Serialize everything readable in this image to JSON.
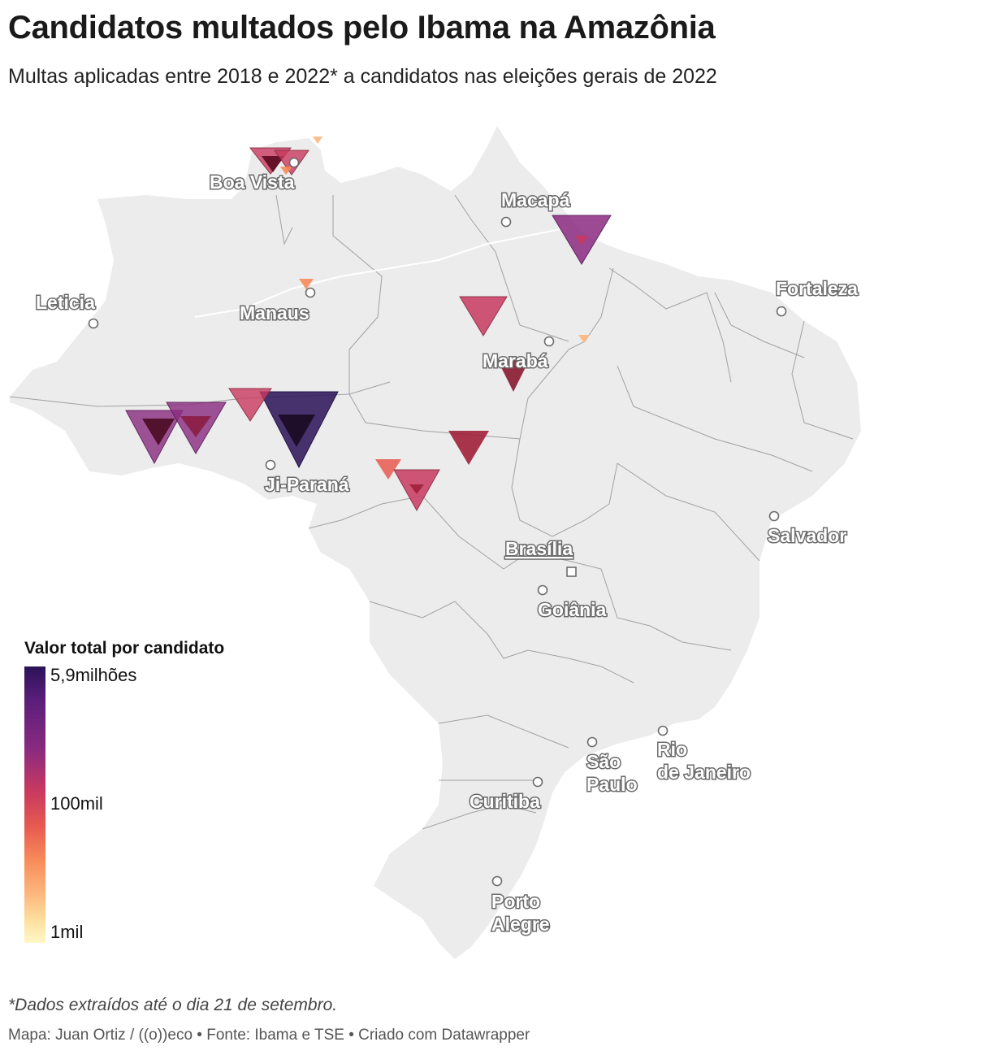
{
  "header": {
    "title": "Candidatos multados pelo Ibama na Amazônia",
    "subtitle": "Multas aplicadas entre 2018 e 2022* a candidatos nas eleições gerais de 2022"
  },
  "legend": {
    "title": "Valor total por candidato",
    "max_label": "5,9milhões",
    "mid_label": "100mil",
    "min_label": "1mil"
  },
  "cities": [
    {
      "name": "Boa Vista"
    },
    {
      "name": "Macapá"
    },
    {
      "name": "Leticia"
    },
    {
      "name": "Manaus"
    },
    {
      "name": "Fortaleza"
    },
    {
      "name": "Marabá"
    },
    {
      "name": "Ji-Paraná"
    },
    {
      "name": "Brasília"
    },
    {
      "name": "Salvador"
    },
    {
      "name": "Goiânia"
    },
    {
      "name": "São Paulo"
    },
    {
      "name": "Rio de Janeiro"
    },
    {
      "name": "Curitiba"
    },
    {
      "name": "Porto Alegre"
    }
  ],
  "colors": {
    "land": "#ececec",
    "borders": "#8e8e8e",
    "scale": [
      "#fff7c6",
      "#fdb67d",
      "#f78b5a",
      "#e85a50",
      "#c8395f",
      "#8a2a80",
      "#5a1e7a",
      "#2a1258"
    ]
  },
  "footer": {
    "note": "*Dados extraídos até o dia 21 de setembro.",
    "credits": "Mapa: Juan Ortiz / ((o))eco • Fonte: Ibama e TSE • Criado com Datawrapper"
  }
}
